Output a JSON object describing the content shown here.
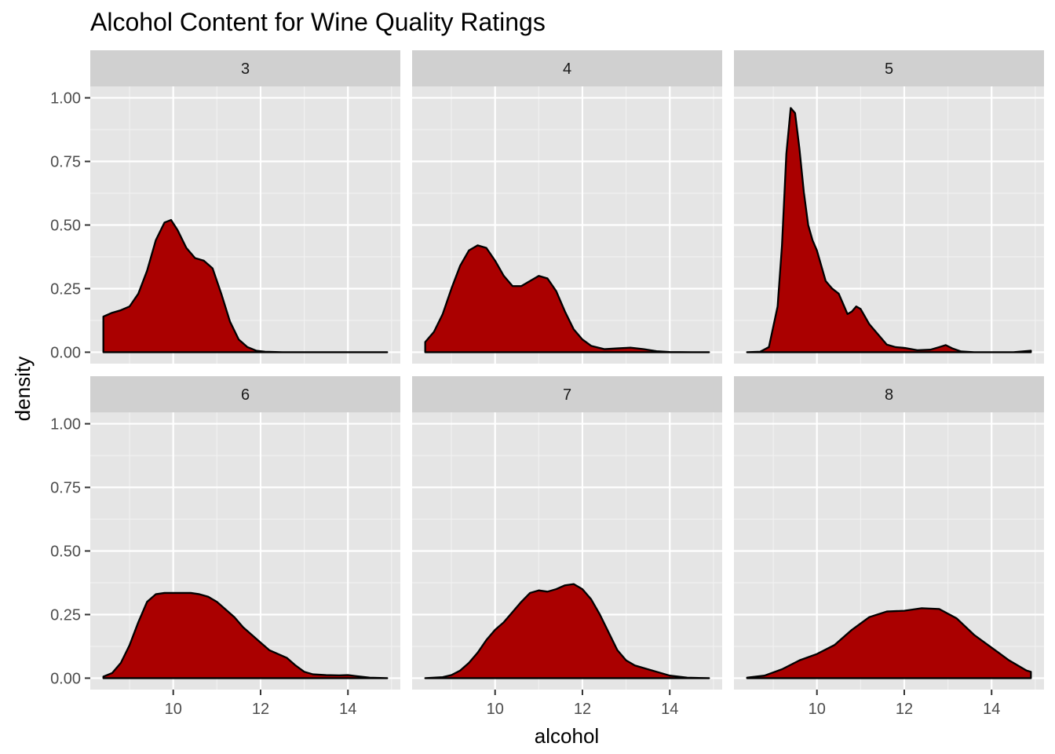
{
  "colors": {
    "panel_background": "#e5e5e5",
    "strip_background": "#d0d0d0",
    "grid_major": "#ffffff",
    "grid_minor": "#f2f2f2",
    "fill": "#aa0000",
    "outline": "#000000",
    "tick_label": "#4d4d4d"
  },
  "chart_data": {
    "type": "area",
    "subtype": "faceted density plot",
    "title": "Alcohol Content for Wine Quality Ratings",
    "xlabel": "alcohol",
    "ylabel": "density",
    "xlim": [
      8.1,
      15.2
    ],
    "ylim": [
      -0.045,
      1.045
    ],
    "x_ticks": [
      10,
      12,
      14
    ],
    "x_tick_labels": [
      "10",
      "12",
      "14"
    ],
    "y_ticks": [
      0,
      0.25,
      0.5,
      0.75,
      1.0
    ],
    "y_tick_labels": [
      "0.00",
      "0.25",
      "0.50",
      "0.75",
      "1.00"
    ],
    "grid": true,
    "layout": {
      "rows": 2,
      "cols": 3
    },
    "facets": [
      {
        "label": "3",
        "x": [
          8.4,
          8.6,
          8.8,
          9.0,
          9.2,
          9.4,
          9.6,
          9.8,
          9.95,
          10.1,
          10.3,
          10.5,
          10.7,
          10.9,
          11.1,
          11.3,
          11.5,
          11.7,
          11.9,
          12.1,
          12.5,
          13.0,
          14.0,
          14.9
        ],
        "y": [
          0.14,
          0.155,
          0.165,
          0.18,
          0.23,
          0.32,
          0.44,
          0.51,
          0.52,
          0.48,
          0.41,
          0.37,
          0.36,
          0.33,
          0.23,
          0.12,
          0.05,
          0.02,
          0.006,
          0.002,
          0.0,
          0.0,
          0.0,
          0.0
        ]
      },
      {
        "label": "4",
        "x": [
          8.4,
          8.6,
          8.8,
          9.0,
          9.2,
          9.4,
          9.6,
          9.8,
          10.0,
          10.2,
          10.4,
          10.6,
          10.8,
          11.0,
          11.2,
          11.4,
          11.6,
          11.8,
          12.0,
          12.2,
          12.5,
          12.8,
          13.1,
          13.4,
          13.7,
          14.0,
          14.5,
          14.9
        ],
        "y": [
          0.04,
          0.08,
          0.15,
          0.25,
          0.34,
          0.4,
          0.42,
          0.41,
          0.36,
          0.3,
          0.26,
          0.26,
          0.28,
          0.3,
          0.29,
          0.24,
          0.16,
          0.09,
          0.05,
          0.025,
          0.012,
          0.015,
          0.018,
          0.012,
          0.004,
          0.001,
          0.0,
          0.0
        ]
      },
      {
        "label": "5",
        "x": [
          8.4,
          8.7,
          8.9,
          9.1,
          9.2,
          9.3,
          9.4,
          9.5,
          9.6,
          9.7,
          9.8,
          9.9,
          10.0,
          10.1,
          10.2,
          10.35,
          10.5,
          10.6,
          10.7,
          10.8,
          10.9,
          11.0,
          11.1,
          11.2,
          11.4,
          11.6,
          11.8,
          12.0,
          12.3,
          12.6,
          12.8,
          12.95,
          13.1,
          13.3,
          13.6,
          14.0,
          14.5,
          14.9
        ],
        "y": [
          0.0,
          0.002,
          0.02,
          0.18,
          0.42,
          0.78,
          0.96,
          0.94,
          0.8,
          0.63,
          0.5,
          0.44,
          0.4,
          0.34,
          0.28,
          0.25,
          0.23,
          0.19,
          0.15,
          0.16,
          0.18,
          0.17,
          0.14,
          0.11,
          0.07,
          0.03,
          0.02,
          0.017,
          0.008,
          0.01,
          0.02,
          0.028,
          0.015,
          0.003,
          0.0,
          0.0,
          0.0,
          0.006
        ]
      },
      {
        "label": "6",
        "x": [
          8.4,
          8.6,
          8.8,
          9.0,
          9.2,
          9.4,
          9.6,
          9.8,
          10.0,
          10.2,
          10.4,
          10.6,
          10.8,
          11.0,
          11.2,
          11.4,
          11.6,
          11.8,
          12.0,
          12.2,
          12.4,
          12.6,
          12.8,
          13.0,
          13.2,
          13.5,
          13.8,
          14.0,
          14.2,
          14.5,
          14.9
        ],
        "y": [
          0.006,
          0.02,
          0.06,
          0.13,
          0.22,
          0.3,
          0.33,
          0.335,
          0.335,
          0.335,
          0.335,
          0.33,
          0.32,
          0.3,
          0.27,
          0.24,
          0.2,
          0.17,
          0.14,
          0.11,
          0.095,
          0.08,
          0.05,
          0.025,
          0.015,
          0.012,
          0.011,
          0.012,
          0.008,
          0.002,
          0.0
        ]
      },
      {
        "label": "7",
        "x": [
          8.4,
          8.8,
          9.0,
          9.2,
          9.4,
          9.6,
          9.8,
          10.0,
          10.2,
          10.4,
          10.6,
          10.8,
          11.0,
          11.2,
          11.4,
          11.6,
          11.8,
          12.0,
          12.2,
          12.4,
          12.6,
          12.8,
          13.0,
          13.2,
          13.4,
          13.6,
          13.8,
          14.0,
          14.4,
          14.9
        ],
        "y": [
          0.0,
          0.004,
          0.012,
          0.03,
          0.06,
          0.1,
          0.15,
          0.19,
          0.22,
          0.26,
          0.3,
          0.335,
          0.345,
          0.34,
          0.35,
          0.365,
          0.37,
          0.35,
          0.31,
          0.25,
          0.18,
          0.11,
          0.07,
          0.05,
          0.04,
          0.03,
          0.02,
          0.01,
          0.002,
          0.0
        ]
      },
      {
        "label": "8",
        "x": [
          8.4,
          8.8,
          9.2,
          9.6,
          10.0,
          10.4,
          10.8,
          11.2,
          11.6,
          12.0,
          12.4,
          12.8,
          13.2,
          13.6,
          14.0,
          14.4,
          14.8,
          14.9
        ],
        "y": [
          0.002,
          0.01,
          0.035,
          0.07,
          0.095,
          0.13,
          0.19,
          0.24,
          0.262,
          0.265,
          0.275,
          0.272,
          0.235,
          0.17,
          0.12,
          0.07,
          0.03,
          0.025
        ]
      }
    ]
  }
}
